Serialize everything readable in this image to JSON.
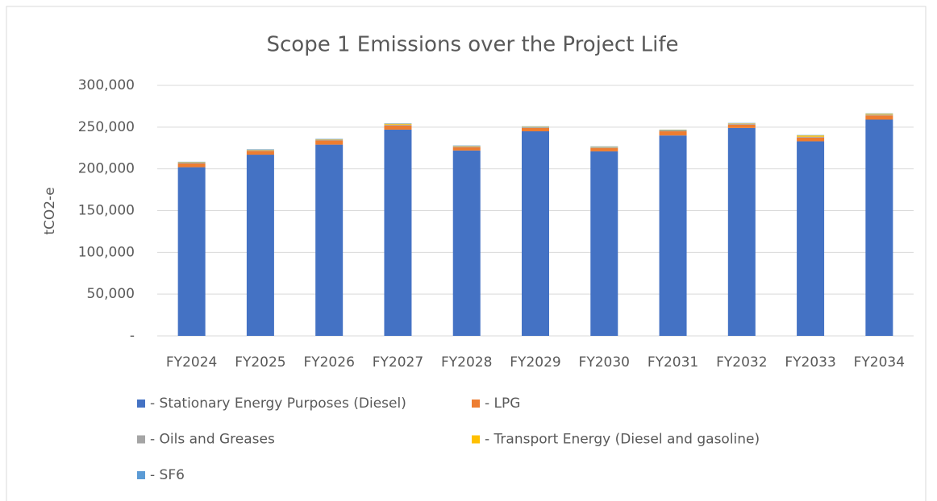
{
  "chart_data": {
    "type": "bar",
    "stacked": true,
    "title": "Scope 1 Emissions over the Project Life",
    "y_label": "tCO2-e",
    "categories": [
      "FY2024",
      "FY2025",
      "FY2026",
      "FY2027",
      "FY2028",
      "FY2029",
      "FY2030",
      "FY2031",
      "FY2032",
      "FY2033",
      "FY2034"
    ],
    "series": [
      {
        "name": " - Stationary Energy Purposes (Diesel)",
        "color": "#4472c4",
        "values": [
          202000,
          217000,
          229000,
          247000,
          222000,
          245000,
          221000,
          240000,
          249000,
          233000,
          259000
        ]
      },
      {
        "name": " - LPG",
        "color": "#ed7d31",
        "values": [
          4500,
          4500,
          5000,
          5000,
          4000,
          4000,
          4000,
          5000,
          4000,
          4500,
          5000
        ]
      },
      {
        "name": " - Oils and Greases",
        "color": "#a5a5a5",
        "values": [
          1000,
          1000,
          1000,
          1000,
          1000,
          1000,
          1000,
          1000,
          1000,
          1000,
          1000
        ]
      },
      {
        "name": " - Transport Energy (Diesel and gasoline)",
        "color": "#ffc000",
        "values": [
          500,
          500,
          500,
          1000,
          500,
          500,
          500,
          500,
          500,
          1500,
          1000
        ]
      },
      {
        "name": " - SF6",
        "color": "#5b9bd5",
        "values": [
          500,
          500,
          500,
          500,
          500,
          500,
          500,
          500,
          500,
          500,
          500
        ]
      }
    ],
    "ylim": [
      0,
      300000
    ],
    "yticks": [
      {
        "value": 0,
        "label": "-"
      },
      {
        "value": 50000,
        "label": "50,000"
      },
      {
        "value": 100000,
        "label": "100,000"
      },
      {
        "value": 150000,
        "label": "150,000"
      },
      {
        "value": 200000,
        "label": "200,000"
      },
      {
        "value": 250000,
        "label": "250,000"
      },
      {
        "value": 300000,
        "label": "300,000"
      }
    ],
    "grid": true,
    "legend": "bottom"
  }
}
